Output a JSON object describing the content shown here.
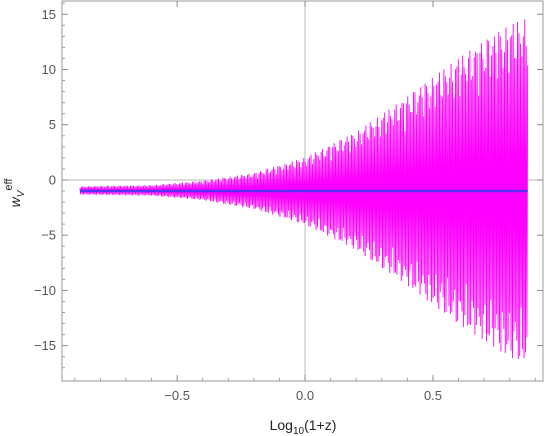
{
  "chart_data": {
    "type": "line",
    "title": "",
    "xlabel": {
      "base": "Log",
      "subscript": "10",
      "rest": "(1+z)"
    },
    "ylabel": {
      "base": "w",
      "subscript": "V",
      "superscript": "eff"
    },
    "xlim": [
      -0.95,
      0.93
    ],
    "ylim": [
      -18.2,
      16.2
    ],
    "x_ticks": [
      {
        "value": -0.5,
        "label": "−0.5"
      },
      {
        "value": 0.0,
        "label": "0.0"
      },
      {
        "value": 0.5,
        "label": "0.5"
      }
    ],
    "y_ticks": [
      {
        "value": 15,
        "label": "15"
      },
      {
        "value": 10,
        "label": "10"
      },
      {
        "value": 5,
        "label": "5"
      },
      {
        "value": 0,
        "label": "0"
      },
      {
        "value": -5,
        "label": "−5"
      },
      {
        "value": -10,
        "label": "−10"
      },
      {
        "value": -15,
        "label": "−15"
      }
    ],
    "grid": false,
    "zero_lines": true,
    "legend": "none",
    "series": [
      {
        "style": "dense oscillating line",
        "color": "#ff00ff",
        "x_range": [
          -0.88,
          0.87
        ],
        "center": -1,
        "envelope": [
          {
            "x": -0.88,
            "upper": -0.6,
            "lower": -1.3
          },
          {
            "x": -0.6,
            "upper": -0.5,
            "lower": -1.4
          },
          {
            "x": -0.4,
            "upper": -0.1,
            "lower": -1.8
          },
          {
            "x": -0.2,
            "upper": 0.6,
            "lower": -2.6
          },
          {
            "x": 0.0,
            "upper": 2.0,
            "lower": -4.0
          },
          {
            "x": 0.2,
            "upper": 4.3,
            "lower": -6.3
          },
          {
            "x": 0.4,
            "upper": 7.5,
            "lower": -9.5
          },
          {
            "x": 0.6,
            "upper": 11.0,
            "lower": -13.0
          },
          {
            "x": 0.8,
            "upper": 14.0,
            "lower": -16.0
          },
          {
            "x": 0.87,
            "upper": 14.6,
            "lower": -16.6
          }
        ]
      },
      {
        "style": "solid line",
        "color": "#5b2ef5",
        "x": [
          -0.88,
          0.87
        ],
        "values": [
          -1,
          -1
        ]
      }
    ]
  }
}
